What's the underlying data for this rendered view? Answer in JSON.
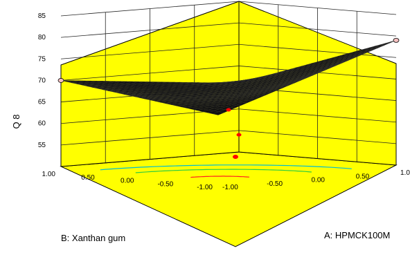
{
  "chart_data": {
    "type": "surface",
    "z_label": "Q 8",
    "x_label": "A: HPMCK100M",
    "y_label": "B: Xanthan gum",
    "x_ticks": [
      "-1.00",
      "-0.50",
      "0.00",
      "0.50",
      "1.00"
    ],
    "y_ticks": [
      "-1.00",
      "-0.50",
      "0.00",
      "0.50",
      "1.00"
    ],
    "z_ticks": [
      "55",
      "60",
      "65",
      "70",
      "75",
      "80",
      "85"
    ],
    "z_range": [
      50,
      85
    ],
    "x_range": [
      -1,
      1
    ],
    "y_range": [
      -1,
      1
    ],
    "surface_corners": [
      {
        "A": 1.0,
        "B": 1.0,
        "Q8": 66
      },
      {
        "A": 1.0,
        "B": -1.0,
        "Q8": 79
      },
      {
        "A": -1.0,
        "B": 1.0,
        "Q8": 70
      },
      {
        "A": -1.0,
        "B": -1.0,
        "Q8": 65
      }
    ],
    "design_points": [
      {
        "A": 0.0,
        "B": 0.0,
        "Q8": 63
      },
      {
        "A": 1.0,
        "B": 1.0,
        "Q8": 54
      },
      {
        "A": 1.0,
        "B": -1.0,
        "Q8": 79
      },
      {
        "A": -1.0,
        "B": 1.0,
        "Q8": 70
      }
    ],
    "colors": {
      "walls": "#ffff00",
      "surface": "#111111",
      "grid": "#222222",
      "contour_green": "#2ecc40",
      "contour_cyan": "#00bcd4",
      "contour_red": "#ff2020",
      "point": "#ff0000"
    }
  }
}
